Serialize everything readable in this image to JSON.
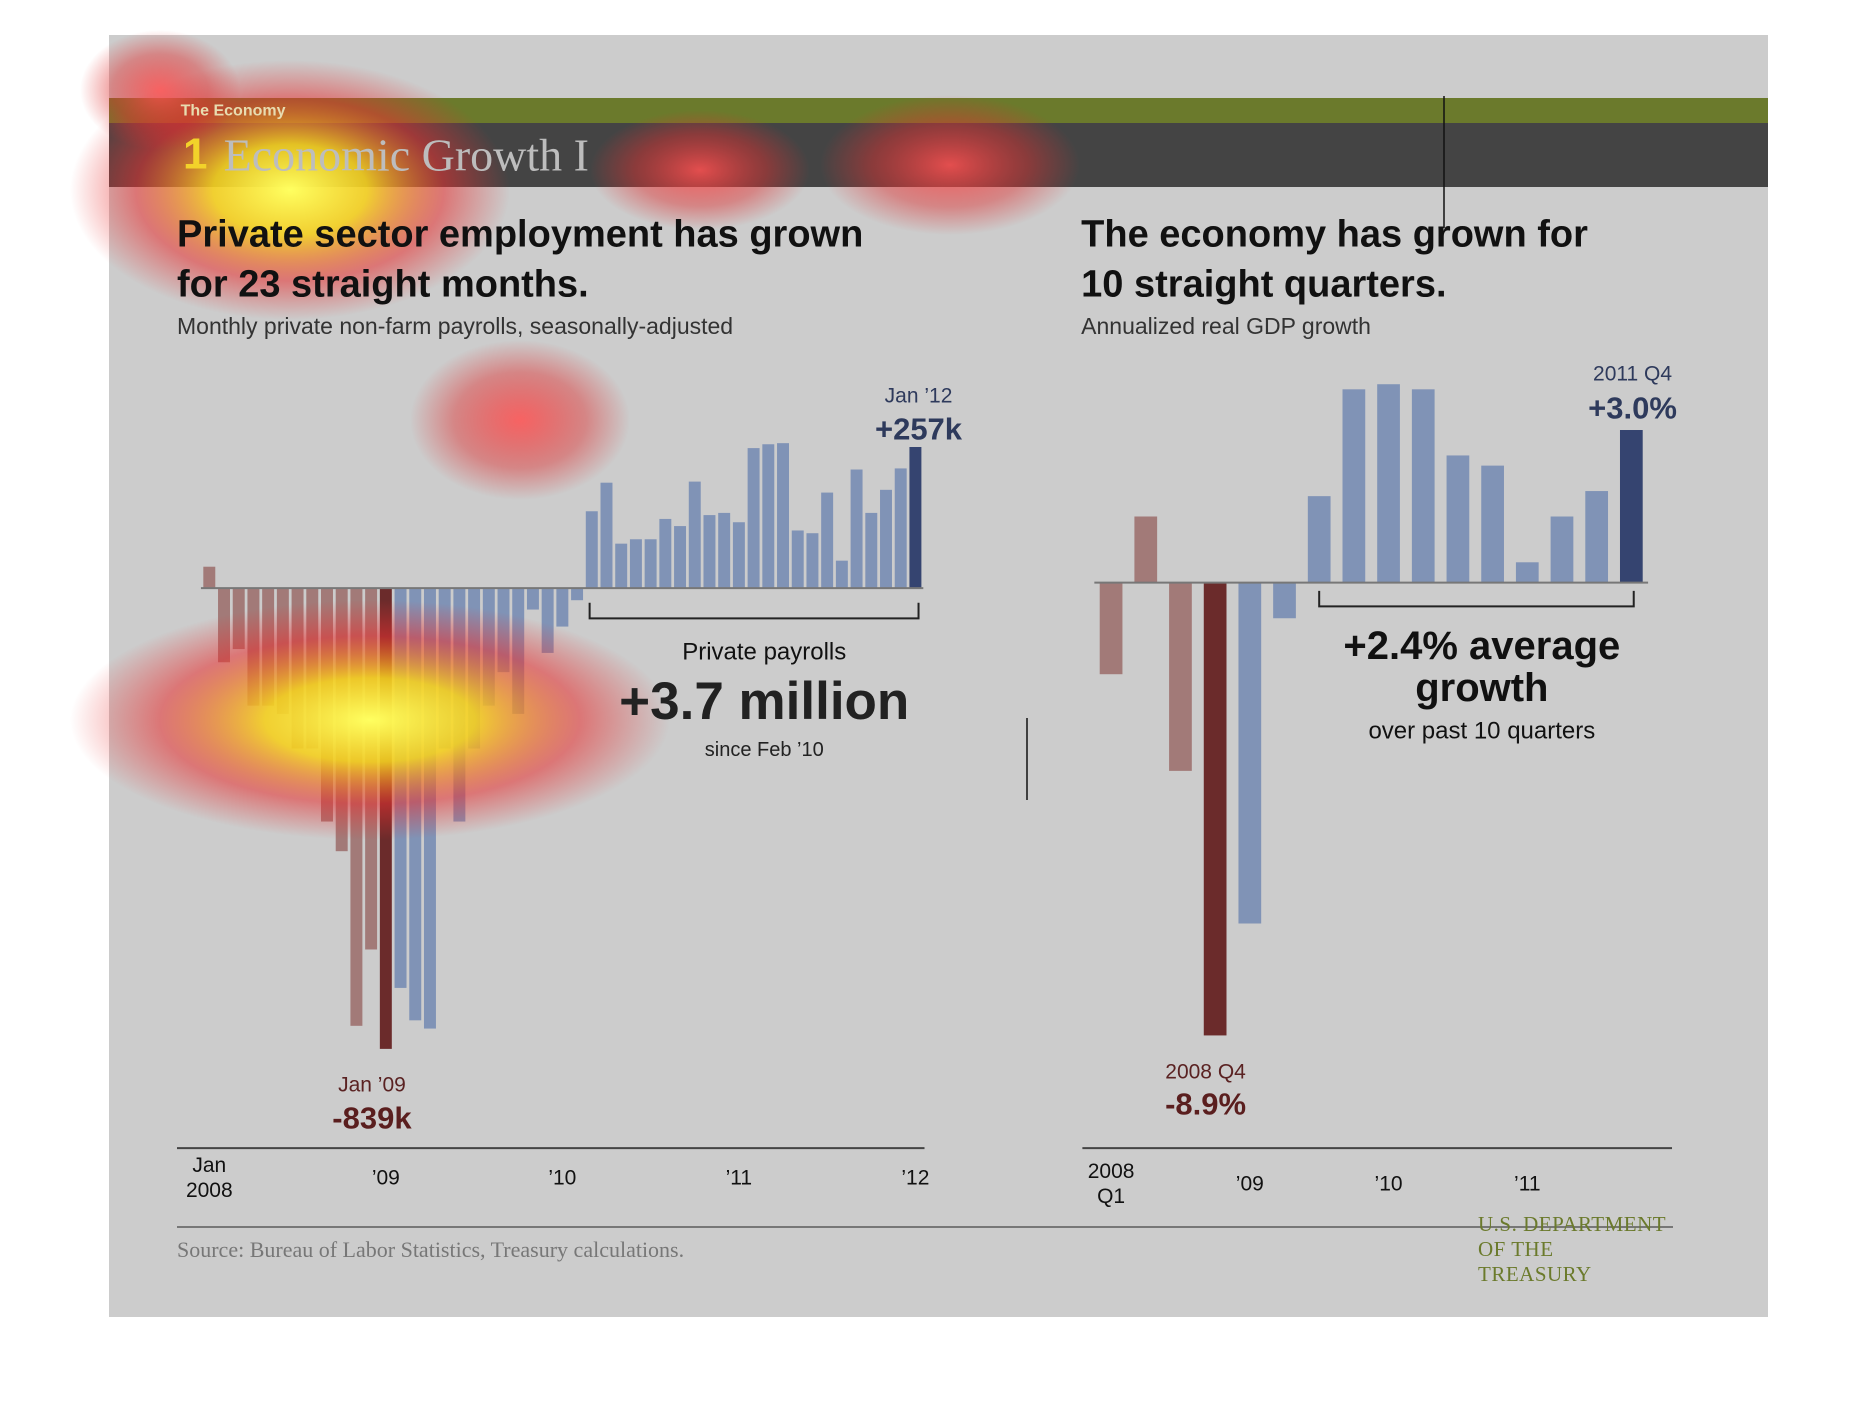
{
  "header": {
    "section": "The Economy",
    "number": "1",
    "title": "Economic Growth I"
  },
  "chart_data": [
    {
      "type": "bar",
      "title": "Private sector employment has grown\nfor 23 straight months.",
      "subtitle": "Monthly private non-farm payrolls, seasonally-adjusted",
      "categories": [
        "Jan\n2008",
        null,
        null,
        null,
        null,
        null,
        null,
        null,
        null,
        null,
        null,
        null,
        "’09",
        null,
        null,
        null,
        null,
        null,
        null,
        null,
        null,
        null,
        null,
        null,
        "’10",
        null,
        null,
        null,
        null,
        null,
        null,
        null,
        null,
        null,
        null,
        null,
        "’11",
        null,
        null,
        null,
        null,
        null,
        null,
        null,
        null,
        null,
        null,
        null,
        "’12"
      ],
      "values": [
        39,
        -135,
        -111,
        -214,
        -214,
        -229,
        -292,
        -292,
        -425,
        -479,
        -797,
        -658,
        -839,
        -728,
        -787,
        -802,
        -292,
        -425,
        -292,
        -214,
        -153,
        -229,
        -39,
        -118,
        -70,
        -22,
        140,
        192,
        81,
        89,
        89,
        126,
        113,
        194,
        133,
        137,
        120,
        255,
        262,
        264,
        105,
        100,
        174,
        50,
        216,
        137,
        179,
        218,
        257
      ],
      "value_labels": [
        null,
        null,
        null,
        null,
        null,
        null,
        null,
        null,
        null,
        null,
        null,
        null,
        "-839k",
        null,
        null,
        null,
        null,
        null,
        null,
        null,
        null,
        null,
        null,
        null,
        null,
        null,
        null,
        null,
        null,
        null,
        null,
        null,
        null,
        null,
        null,
        null,
        null,
        null,
        null,
        null,
        null,
        null,
        null,
        null,
        null,
        null,
        null,
        null,
        "+257k"
      ],
      "colors": [
        "#a27a78",
        "#a27a78",
        "#a27a78",
        "#a27a78",
        "#a27a78",
        "#a27a78",
        "#a27a78",
        "#a27a78",
        "#a27a78",
        "#a27a78",
        "#a27a78",
        "#a27a78",
        "#6b2b2b",
        "#8093b6",
        "#8093b6",
        "#8093b6",
        "#8093b6",
        "#8093b6",
        "#8093b6",
        "#8093b6",
        "#8093b6",
        "#8093b6",
        "#8093b6",
        "#8093b6",
        "#8093b6",
        "#8093b6",
        "#8093b6",
        "#8093b6",
        "#8093b6",
        "#8093b6",
        "#8093b6",
        "#8093b6",
        "#8093b6",
        "#8093b6",
        "#8093b6",
        "#8093b6",
        "#8093b6",
        "#8093b6",
        "#8093b6",
        "#8093b6",
        "#8093b6",
        "#8093b6",
        "#8093b6",
        "#8093b6",
        "#8093b6",
        "#8093b6",
        "#8093b6",
        "#8093b6",
        "#354470"
      ],
      "ylim": [
        -900,
        300
      ],
      "annotations": [
        "Jan ’12",
        "Jan ’09",
        "Private payrolls",
        "+3.7 million",
        "since Feb ’10"
      ]
    },
    {
      "type": "bar",
      "title": "The economy has grown for\n10 straight quarters.",
      "subtitle": "Annualized real GDP growth",
      "categories": [
        "2008\nQ1",
        null,
        null,
        null,
        "’09",
        null,
        null,
        null,
        "’10",
        null,
        null,
        null,
        "’11",
        null,
        null,
        null
      ],
      "values": [
        -1.8,
        1.3,
        -3.7,
        -8.9,
        -6.7,
        -0.7,
        1.7,
        3.8,
        3.9,
        3.8,
        2.5,
        2.3,
        0.4,
        1.3,
        1.8,
        3.0
      ],
      "value_labels": [
        null,
        null,
        null,
        "-8.9%",
        null,
        null,
        null,
        null,
        null,
        null,
        null,
        null,
        null,
        null,
        null,
        "+3.0%"
      ],
      "colors": [
        "#a27a78",
        "#a27a78",
        "#a27a78",
        "#6b2b2b",
        "#8093b6",
        "#8093b6",
        "#8093b6",
        "#8093b6",
        "#8093b6",
        "#8093b6",
        "#8093b6",
        "#8093b6",
        "#8093b6",
        "#8093b6",
        "#8093b6",
        "#354470"
      ],
      "ylim": [
        -9,
        4
      ],
      "annotations": [
        "2008 Q4",
        "2011 Q4",
        "+2.4% average\ngrowth",
        "over past 10 quarters"
      ]
    }
  ],
  "footer": {
    "source": "Source: Bureau of Labor Statistics, Treasury calculations.",
    "agency": "U.S. DEPARTMENT OF THE TREASURY"
  }
}
